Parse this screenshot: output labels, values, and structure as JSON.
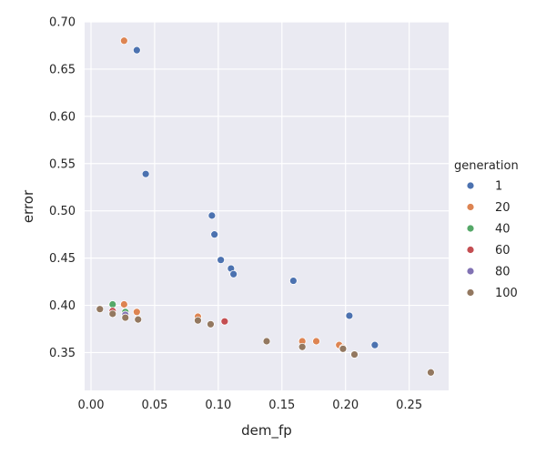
{
  "chart_data": {
    "type": "scatter",
    "xlabel": "dem_fp",
    "ylabel": "error",
    "xlim": [
      -0.005,
      0.281
    ],
    "ylim": [
      0.31,
      0.7
    ],
    "xticks": [
      "0.00",
      "0.05",
      "0.10",
      "0.15",
      "0.20",
      "0.25"
    ],
    "xtick_values": [
      0.0,
      0.05,
      0.1,
      0.15,
      0.2,
      0.25
    ],
    "yticks": [
      "0.35",
      "0.40",
      "0.45",
      "0.50",
      "0.55",
      "0.60",
      "0.65",
      "0.70"
    ],
    "ytick_values": [
      0.35,
      0.4,
      0.45,
      0.5,
      0.55,
      0.6,
      0.65,
      0.7
    ],
    "grid": true,
    "legend": {
      "title": "generation",
      "placement": "right"
    },
    "series": [
      {
        "name": "1",
        "color": "#4c72b0",
        "points": [
          [
            0.036,
            0.67
          ],
          [
            0.043,
            0.539
          ],
          [
            0.095,
            0.495
          ],
          [
            0.097,
            0.475
          ],
          [
            0.102,
            0.448
          ],
          [
            0.11,
            0.439
          ],
          [
            0.112,
            0.433
          ],
          [
            0.159,
            0.426
          ],
          [
            0.203,
            0.389
          ],
          [
            0.223,
            0.358
          ],
          [
            0.267,
            0.329
          ]
        ]
      },
      {
        "name": "20",
        "color": "#dd8452",
        "points": [
          [
            0.026,
            0.68
          ],
          [
            0.026,
            0.401
          ],
          [
            0.036,
            0.393
          ],
          [
            0.084,
            0.388
          ],
          [
            0.166,
            0.362
          ],
          [
            0.177,
            0.362
          ],
          [
            0.195,
            0.358
          ],
          [
            0.198,
            0.355
          ],
          [
            0.207,
            0.348
          ]
        ]
      },
      {
        "name": "40",
        "color": "#55a868",
        "points": [
          [
            0.017,
            0.401
          ],
          [
            0.027,
            0.393
          ]
        ]
      },
      {
        "name": "60",
        "color": "#c44e52",
        "points": [
          [
            0.017,
            0.394
          ],
          [
            0.105,
            0.383
          ]
        ]
      },
      {
        "name": "80",
        "color": "#8172b3",
        "points": [
          [
            0.027,
            0.39
          ]
        ]
      },
      {
        "name": "100",
        "color": "#937860",
        "points": [
          [
            0.007,
            0.396
          ],
          [
            0.017,
            0.391
          ],
          [
            0.027,
            0.387
          ],
          [
            0.037,
            0.385
          ],
          [
            0.084,
            0.384
          ],
          [
            0.094,
            0.38
          ],
          [
            0.138,
            0.362
          ],
          [
            0.166,
            0.356
          ],
          [
            0.198,
            0.354
          ],
          [
            0.207,
            0.348
          ],
          [
            0.267,
            0.329
          ]
        ]
      }
    ]
  }
}
